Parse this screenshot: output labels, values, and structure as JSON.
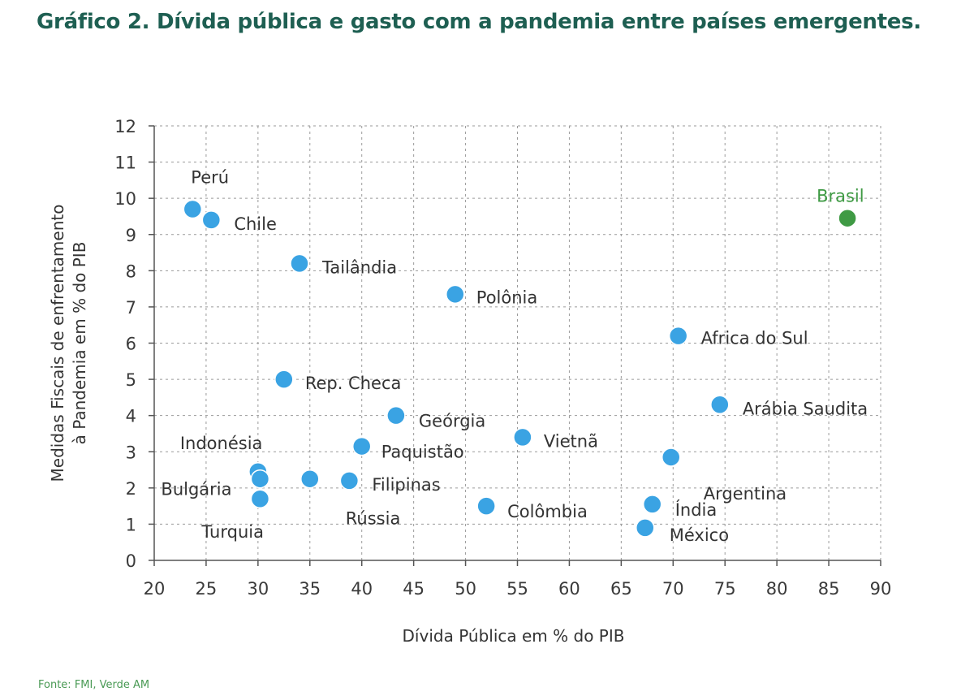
{
  "title": "Gráfico 2. Dívida pública e gasto com a pandemia entre países emergentes.",
  "source": "Fonte: FMI, Verde AM",
  "colors": {
    "title": "#1e5f52",
    "point": "#3aa3e3",
    "highlight": "#3f9a44",
    "source": "#4a9a55"
  },
  "chart_data": {
    "type": "scatter",
    "xlabel": "Dívida Pública em % do PIB",
    "ylabel_lines": [
      "Medidas Fiscais de enfrentamento",
      "à Pandemia em % do PIB"
    ],
    "xlim": [
      20,
      90
    ],
    "ylim": [
      0,
      12
    ],
    "xticks": [
      20,
      25,
      30,
      35,
      40,
      45,
      50,
      55,
      60,
      65,
      70,
      75,
      80,
      85,
      90
    ],
    "yticks": [
      0,
      1,
      2,
      3,
      4,
      5,
      6,
      7,
      8,
      9,
      10,
      11,
      12
    ],
    "grid": true,
    "points": [
      {
        "label": "Perú",
        "x": 23.7,
        "y": 9.7,
        "show_label": true
      },
      {
        "label": "Chile",
        "x": 25.5,
        "y": 9.4,
        "show_label": true
      },
      {
        "label": "Tailândia",
        "x": 34.0,
        "y": 8.2,
        "show_label": true
      },
      {
        "label": "Polônia",
        "x": 49.0,
        "y": 7.35,
        "show_label": true
      },
      {
        "label": "Africa do Sul",
        "x": 70.5,
        "y": 6.2,
        "show_label": true
      },
      {
        "label": "Rep. Checa",
        "x": 32.5,
        "y": 5.0,
        "show_label": true
      },
      {
        "label": "Geórgia",
        "x": 43.3,
        "y": 4.0,
        "show_label": true
      },
      {
        "label": "Arábia Saudita",
        "x": 74.5,
        "y": 4.3,
        "show_label": true
      },
      {
        "label": "Vietnã",
        "x": 55.5,
        "y": 3.4,
        "show_label": true
      },
      {
        "label": "Paquistão",
        "x": 40.0,
        "y": 3.15,
        "show_label": true
      },
      {
        "label": "Argentina",
        "x": 69.8,
        "y": 2.85,
        "show_label": true
      },
      {
        "label": "Indonésia",
        "x": 30.0,
        "y": 2.45,
        "show_label": true
      },
      {
        "label": "Bulgária",
        "x": 30.2,
        "y": 2.25,
        "show_label": true
      },
      {
        "label": "Rússia",
        "x": 35.0,
        "y": 2.25,
        "show_label": true
      },
      {
        "label": "Filipinas",
        "x": 38.8,
        "y": 2.2,
        "show_label": true
      },
      {
        "label": "Turquia",
        "x": 30.2,
        "y": 1.7,
        "show_label": true
      },
      {
        "label": "Colômbia",
        "x": 52.0,
        "y": 1.5,
        "show_label": true
      },
      {
        "label": "Índia",
        "x": 68.0,
        "y": 1.55,
        "show_label": true
      },
      {
        "label": "México",
        "x": 67.3,
        "y": 0.9,
        "show_label": true
      },
      {
        "label": "Brasil",
        "x": 86.8,
        "y": 9.45,
        "show_label": true,
        "highlight": true
      }
    ]
  }
}
